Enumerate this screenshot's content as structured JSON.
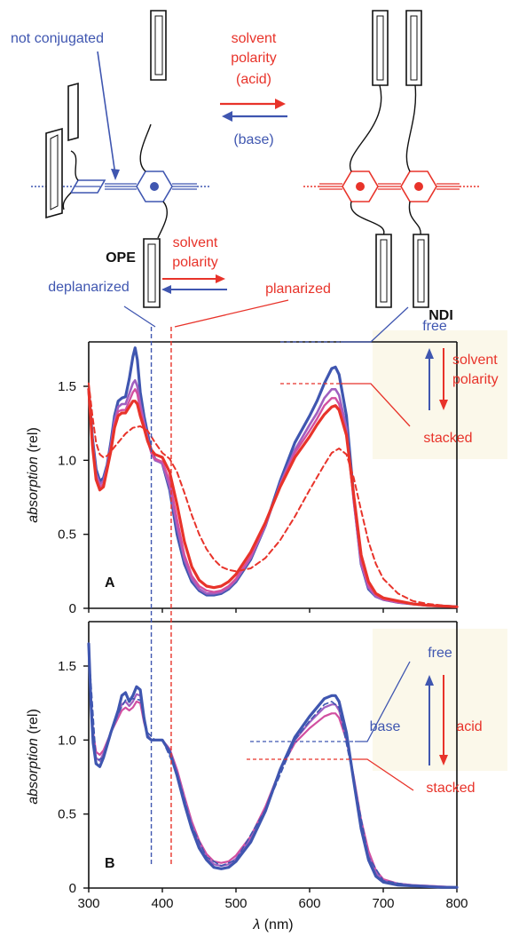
{
  "scheme": {
    "not_conjugated": "not conjugated",
    "arrow_label_top": [
      "solvent",
      "polarity",
      "(acid)"
    ],
    "arrow_label_bottom": "(base)"
  },
  "legend": {
    "ope": "OPE",
    "deplanarized": "deplanarized",
    "solvent": "solvent",
    "polarity": "polarity",
    "planarized": "planarized",
    "ndi": "NDI",
    "panelA_free": "free",
    "panelA_stacked": "stacked",
    "panelA_solvent": "solvent",
    "panelA_polarity": "polarity",
    "panelB_free": "free",
    "panelB_stacked": "stacked",
    "panelB_base": "base",
    "panelB_acid": "acid"
  },
  "colors": {
    "blue": "#3f56b0",
    "red": "#e8332a",
    "purple": "#a060c0",
    "pink": "#d24fa0",
    "panel_bg": "#fbf8ea"
  },
  "chart_data": [
    {
      "type": "line",
      "panel_label": "A",
      "ylabel_italic": "absorption",
      "ylabel_unit": " (rel)",
      "xlim": [
        300,
        800
      ],
      "ylim": [
        0,
        1.8
      ],
      "yticks": [
        "0",
        "0.5",
        "1.0",
        "1.5"
      ],
      "ytick_values": [
        0,
        0.5,
        1.0,
        1.5
      ],
      "dashed_markers": [
        385,
        412
      ],
      "series": [
        {
          "color": "#3f56b0",
          "width": 3.2,
          "dash": false,
          "x": [
            300,
            305,
            310,
            315,
            320,
            325,
            330,
            335,
            340,
            345,
            350,
            355,
            360,
            363,
            366,
            370,
            375,
            380,
            385,
            390,
            400,
            410,
            420,
            430,
            440,
            450,
            460,
            470,
            480,
            490,
            500,
            520,
            540,
            560,
            580,
            600,
            610,
            620,
            630,
            635,
            640,
            650,
            660,
            670,
            680,
            690,
            700,
            720,
            740,
            760,
            780,
            800
          ],
          "y": [
            1.48,
            1.15,
            0.94,
            0.86,
            0.88,
            0.97,
            1.12,
            1.3,
            1.4,
            1.42,
            1.43,
            1.55,
            1.7,
            1.76,
            1.68,
            1.46,
            1.3,
            1.18,
            1.06,
            1.01,
            0.98,
            0.8,
            0.5,
            0.3,
            0.18,
            0.12,
            0.09,
            0.09,
            0.1,
            0.13,
            0.18,
            0.33,
            0.56,
            0.86,
            1.12,
            1.3,
            1.4,
            1.52,
            1.62,
            1.63,
            1.58,
            1.3,
            0.75,
            0.3,
            0.13,
            0.08,
            0.06,
            0.04,
            0.03,
            0.02,
            0.015,
            0.01
          ]
        },
        {
          "color": "#a060c0",
          "width": 2.6,
          "dash": false,
          "x": [
            300,
            305,
            310,
            315,
            320,
            325,
            330,
            335,
            340,
            345,
            350,
            355,
            360,
            363,
            366,
            370,
            375,
            380,
            385,
            390,
            400,
            410,
            420,
            430,
            440,
            450,
            460,
            470,
            480,
            490,
            500,
            520,
            540,
            560,
            580,
            600,
            610,
            620,
            630,
            635,
            640,
            650,
            660,
            670,
            680,
            690,
            700,
            720,
            740,
            760,
            780,
            800
          ],
          "y": [
            1.48,
            1.13,
            0.91,
            0.84,
            0.86,
            0.96,
            1.1,
            1.27,
            1.36,
            1.38,
            1.38,
            1.45,
            1.52,
            1.54,
            1.5,
            1.38,
            1.26,
            1.15,
            1.05,
            1.0,
            0.98,
            0.82,
            0.55,
            0.33,
            0.2,
            0.13,
            0.1,
            0.1,
            0.11,
            0.14,
            0.19,
            0.34,
            0.56,
            0.84,
            1.07,
            1.24,
            1.32,
            1.42,
            1.48,
            1.48,
            1.44,
            1.22,
            0.72,
            0.3,
            0.14,
            0.08,
            0.06,
            0.04,
            0.03,
            0.02,
            0.015,
            0.01
          ]
        },
        {
          "color": "#d24fa0",
          "width": 2.4,
          "dash": false,
          "x": [
            300,
            305,
            310,
            315,
            320,
            325,
            330,
            335,
            340,
            345,
            350,
            355,
            360,
            363,
            366,
            370,
            375,
            380,
            385,
            390,
            400,
            410,
            420,
            430,
            440,
            450,
            460,
            470,
            480,
            490,
            500,
            520,
            540,
            560,
            580,
            600,
            610,
            620,
            630,
            635,
            640,
            650,
            660,
            670,
            680,
            690,
            700,
            720,
            740,
            760,
            780,
            800
          ],
          "y": [
            1.48,
            1.12,
            0.89,
            0.82,
            0.84,
            0.95,
            1.08,
            1.24,
            1.33,
            1.34,
            1.34,
            1.4,
            1.46,
            1.48,
            1.45,
            1.34,
            1.24,
            1.13,
            1.05,
            1.01,
            0.99,
            0.86,
            0.6,
            0.36,
            0.22,
            0.15,
            0.12,
            0.11,
            0.12,
            0.15,
            0.2,
            0.35,
            0.57,
            0.83,
            1.05,
            1.2,
            1.28,
            1.37,
            1.42,
            1.42,
            1.38,
            1.18,
            0.73,
            0.32,
            0.15,
            0.09,
            0.06,
            0.04,
            0.03,
            0.02,
            0.015,
            0.01
          ]
        },
        {
          "color": "#e8332a",
          "width": 3.2,
          "dash": false,
          "x": [
            300,
            305,
            310,
            315,
            320,
            325,
            330,
            335,
            340,
            345,
            350,
            355,
            360,
            363,
            366,
            370,
            375,
            380,
            385,
            390,
            400,
            410,
            420,
            430,
            440,
            450,
            460,
            470,
            480,
            490,
            500,
            520,
            540,
            560,
            580,
            600,
            610,
            620,
            630,
            635,
            640,
            650,
            660,
            670,
            680,
            690,
            700,
            720,
            740,
            760,
            780,
            800
          ],
          "y": [
            1.48,
            1.1,
            0.87,
            0.8,
            0.82,
            0.94,
            1.06,
            1.22,
            1.3,
            1.32,
            1.32,
            1.36,
            1.4,
            1.4,
            1.38,
            1.3,
            1.22,
            1.13,
            1.07,
            1.04,
            1.02,
            0.92,
            0.7,
            0.45,
            0.28,
            0.19,
            0.15,
            0.14,
            0.15,
            0.18,
            0.23,
            0.38,
            0.58,
            0.82,
            1.02,
            1.16,
            1.24,
            1.31,
            1.36,
            1.37,
            1.34,
            1.17,
            0.76,
            0.36,
            0.18,
            0.1,
            0.07,
            0.05,
            0.03,
            0.02,
            0.015,
            0.01
          ]
        },
        {
          "color": "#e8332a",
          "width": 2.0,
          "dash": true,
          "x": [
            300,
            305,
            310,
            315,
            320,
            325,
            330,
            340,
            350,
            360,
            370,
            380,
            390,
            400,
            410,
            420,
            430,
            440,
            450,
            460,
            470,
            480,
            490,
            500,
            520,
            540,
            560,
            580,
            600,
            620,
            630,
            640,
            650,
            660,
            670,
            680,
            690,
            700,
            720,
            740,
            760,
            780,
            800
          ],
          "y": [
            1.52,
            1.3,
            1.12,
            1.04,
            1.02,
            1.03,
            1.06,
            1.12,
            1.18,
            1.22,
            1.23,
            1.2,
            1.12,
            1.05,
            1.01,
            0.92,
            0.78,
            0.63,
            0.5,
            0.4,
            0.33,
            0.28,
            0.26,
            0.25,
            0.27,
            0.34,
            0.46,
            0.62,
            0.8,
            0.97,
            1.05,
            1.08,
            1.04,
            0.88,
            0.66,
            0.45,
            0.3,
            0.2,
            0.1,
            0.05,
            0.03,
            0.02,
            0.01
          ]
        }
      ]
    },
    {
      "type": "line",
      "panel_label": "B",
      "ylabel_italic": "absorption",
      "ylabel_unit": " (rel)",
      "xlabel_italic": "λ",
      "xlabel_unit": " (nm)",
      "xlim": [
        300,
        800
      ],
      "ylim": [
        0,
        1.8
      ],
      "xticks": [
        "300",
        "400",
        "500",
        "600",
        "700",
        "800"
      ],
      "xtick_values": [
        300,
        400,
        500,
        600,
        700,
        800
      ],
      "yticks": [
        "0",
        "0.5",
        "1.0",
        "1.5"
      ],
      "ytick_values": [
        0,
        0.5,
        1.0,
        1.5
      ],
      "dashed_markers": [
        385,
        412
      ],
      "series": [
        {
          "color": "#d24fa0",
          "width": 2.2,
          "dash": false,
          "x": [
            300,
            303,
            306,
            310,
            315,
            320,
            330,
            340,
            345,
            350,
            355,
            360,
            365,
            370,
            375,
            380,
            385,
            390,
            400,
            410,
            420,
            430,
            440,
            450,
            460,
            470,
            480,
            490,
            500,
            520,
            540,
            560,
            580,
            600,
            610,
            620,
            630,
            635,
            640,
            650,
            660,
            670,
            680,
            690,
            700,
            720,
            740,
            760,
            780,
            800
          ],
          "y": [
            1.65,
            1.3,
            1.05,
            0.92,
            0.9,
            0.93,
            1.05,
            1.15,
            1.2,
            1.22,
            1.2,
            1.22,
            1.26,
            1.25,
            1.12,
            1.03,
            1.0,
            1.0,
            1.0,
            0.94,
            0.8,
            0.62,
            0.45,
            0.32,
            0.23,
            0.18,
            0.17,
            0.18,
            0.22,
            0.35,
            0.55,
            0.8,
            0.98,
            1.08,
            1.12,
            1.16,
            1.18,
            1.18,
            1.15,
            1.0,
            0.75,
            0.46,
            0.25,
            0.12,
            0.06,
            0.03,
            0.02,
            0.015,
            0.01,
            0.005
          ]
        },
        {
          "color": "#a060c0",
          "width": 2.2,
          "dash": false,
          "x": [
            300,
            303,
            306,
            310,
            315,
            320,
            330,
            340,
            345,
            350,
            355,
            360,
            365,
            370,
            375,
            380,
            385,
            390,
            400,
            410,
            420,
            430,
            440,
            450,
            460,
            470,
            480,
            490,
            500,
            520,
            540,
            560,
            580,
            600,
            610,
            620,
            630,
            635,
            640,
            650,
            660,
            670,
            680,
            690,
            700,
            720,
            740,
            760,
            780,
            800
          ],
          "y": [
            1.65,
            1.28,
            1.02,
            0.88,
            0.86,
            0.91,
            1.05,
            1.17,
            1.24,
            1.26,
            1.23,
            1.26,
            1.31,
            1.3,
            1.14,
            1.03,
            1.0,
            1.0,
            1.0,
            0.93,
            0.78,
            0.6,
            0.43,
            0.3,
            0.21,
            0.16,
            0.15,
            0.16,
            0.2,
            0.33,
            0.53,
            0.8,
            1.0,
            1.12,
            1.17,
            1.22,
            1.24,
            1.24,
            1.2,
            1.02,
            0.74,
            0.43,
            0.22,
            0.1,
            0.05,
            0.03,
            0.02,
            0.015,
            0.01,
            0.005
          ]
        },
        {
          "color": "#3f56b0",
          "width": 3.2,
          "dash": false,
          "x": [
            300,
            303,
            306,
            310,
            315,
            320,
            330,
            340,
            345,
            350,
            355,
            360,
            365,
            370,
            375,
            380,
            385,
            390,
            400,
            410,
            420,
            430,
            440,
            450,
            460,
            470,
            480,
            490,
            500,
            520,
            540,
            560,
            580,
            600,
            610,
            620,
            630,
            635,
            640,
            650,
            660,
            670,
            680,
            690,
            700,
            720,
            740,
            760,
            780,
            800
          ],
          "y": [
            1.65,
            1.25,
            0.98,
            0.84,
            0.82,
            0.88,
            1.05,
            1.2,
            1.3,
            1.32,
            1.26,
            1.3,
            1.36,
            1.34,
            1.15,
            1.02,
            1.0,
            1.0,
            1.0,
            0.92,
            0.76,
            0.57,
            0.4,
            0.27,
            0.19,
            0.14,
            0.13,
            0.14,
            0.18,
            0.31,
            0.52,
            0.8,
            1.02,
            1.16,
            1.22,
            1.28,
            1.3,
            1.3,
            1.26,
            1.05,
            0.72,
            0.4,
            0.19,
            0.08,
            0.04,
            0.02,
            0.015,
            0.01,
            0.005,
            0.005
          ]
        },
        {
          "color": "#3f56b0",
          "width": 1.6,
          "dash": true,
          "x": [
            300,
            310,
            320,
            330,
            340,
            350,
            360,
            370,
            380,
            390,
            400,
            420,
            440,
            460,
            480,
            500,
            540,
            580,
            600,
            620,
            630,
            640,
            660,
            680,
            700,
            740,
            800
          ],
          "y": [
            1.62,
            0.86,
            0.88,
            1.04,
            1.18,
            1.27,
            1.28,
            1.27,
            1.05,
            1.0,
            1.0,
            0.78,
            0.42,
            0.21,
            0.15,
            0.19,
            0.53,
            1.0,
            1.13,
            1.24,
            1.26,
            1.22,
            0.73,
            0.21,
            0.05,
            0.015,
            0.005
          ]
        }
      ]
    }
  ]
}
